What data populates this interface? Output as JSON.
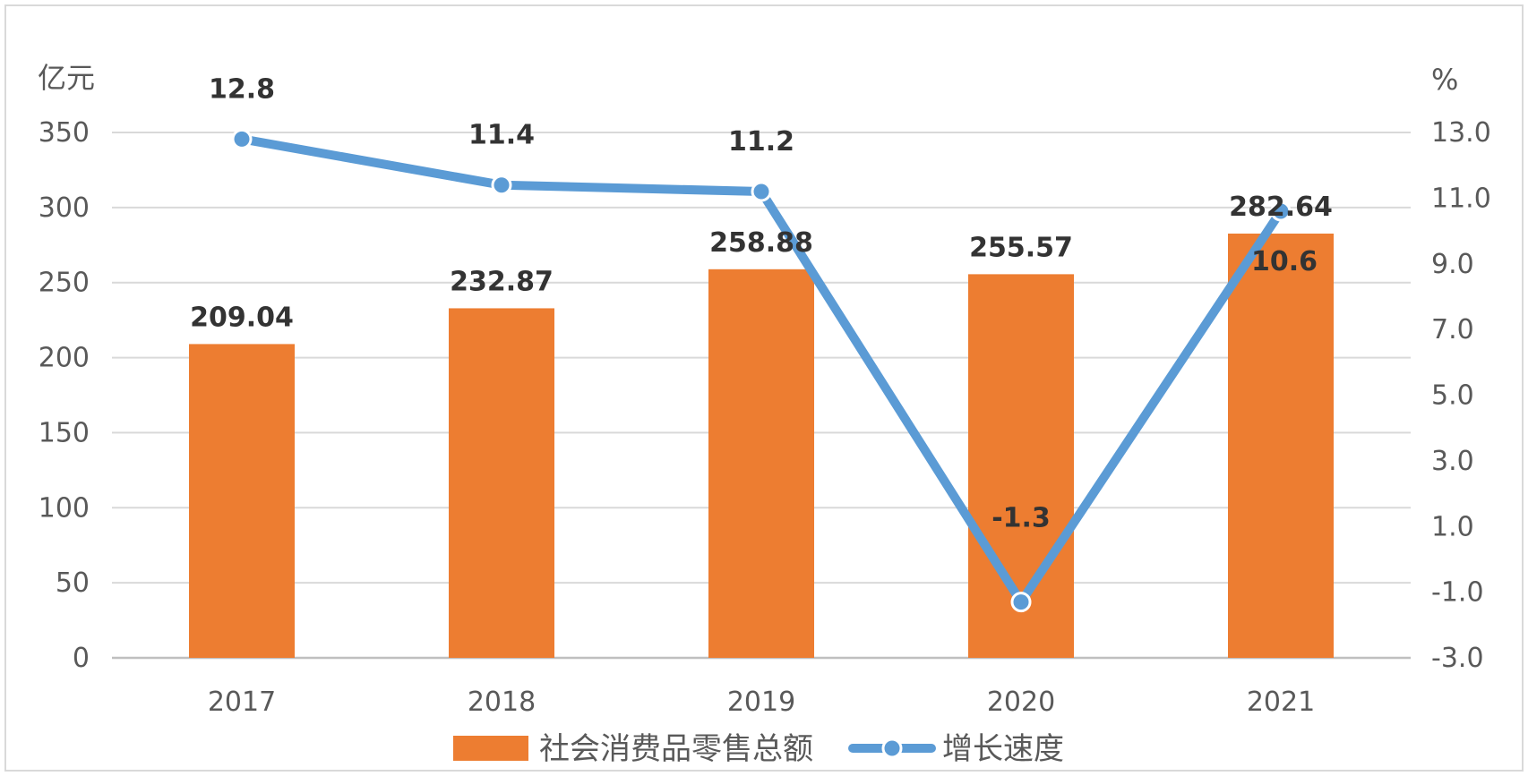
{
  "chart_data": {
    "type": "bar",
    "categories": [
      "2017",
      "2018",
      "2019",
      "2020",
      "2021"
    ],
    "y_left": {
      "unit": "亿元",
      "ylim": [
        0,
        350
      ],
      "ticks": [
        "0",
        "50",
        "100",
        "150",
        "200",
        "250",
        "300",
        "350"
      ]
    },
    "y_right": {
      "unit": "%",
      "ylim": [
        -3.0,
        13.0
      ],
      "ticks": [
        "-3.0",
        "-1.0",
        "1.0",
        "3.0",
        "5.0",
        "7.0",
        "9.0",
        "11.0",
        "13.0"
      ]
    },
    "series": [
      {
        "name": "社会消费品零售总额",
        "type": "bar",
        "axis": "left",
        "color": "#ED7D31",
        "values": [
          209.04,
          232.87,
          258.88,
          255.57,
          282.64
        ],
        "labels": [
          "209.04",
          "232.87",
          "258.88",
          "255.57",
          "282.64"
        ]
      },
      {
        "name": "增长速度",
        "type": "line",
        "axis": "right",
        "color": "#5B9BD5",
        "values": [
          12.8,
          11.4,
          11.2,
          -1.3,
          10.6
        ],
        "labels": [
          "12.8",
          "11.4",
          "11.2",
          "-1.3",
          "10.6"
        ]
      }
    ],
    "grid": true,
    "legend": "bottom"
  }
}
